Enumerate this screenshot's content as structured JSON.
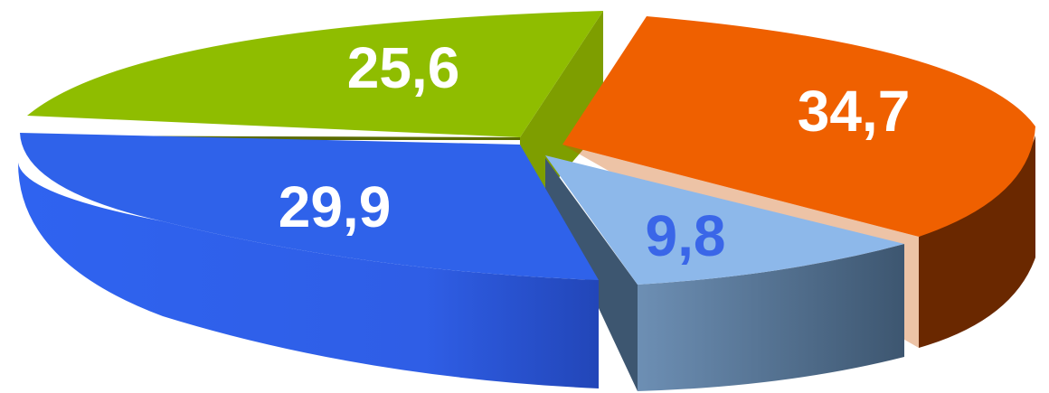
{
  "chart_data": {
    "type": "pie",
    "style": "3d-exploded",
    "values": [
      34.7,
      9.8,
      29.9,
      25.6
    ],
    "labels": [
      "34,7",
      "9,8",
      "29,9",
      "25,6"
    ],
    "colors": [
      "#ef6000",
      "#8db8ea",
      "#2f62ea",
      "#8fbd00"
    ],
    "label_colors": [
      "#ffffff",
      "#3a66e8",
      "#ffffff",
      "#ffffff"
    ],
    "title": "",
    "legend": "none"
  }
}
